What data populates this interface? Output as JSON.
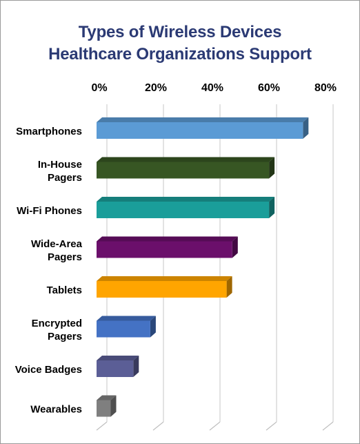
{
  "chart_data": {
    "type": "bar",
    "orientation": "horizontal",
    "title_lines": [
      "Types of Wireless Devices",
      "Healthcare Organizations Support"
    ],
    "categories": [
      [
        "Smartphones"
      ],
      [
        "In-House",
        "Pagers"
      ],
      [
        "Wi-Fi Phones"
      ],
      [
        "Wide-Area",
        "Pagers"
      ],
      [
        "Tablets"
      ],
      [
        "Encrypted",
        "Pagers"
      ],
      [
        "Voice Badges"
      ],
      [
        "Wearables"
      ]
    ],
    "values": [
      73,
      61,
      61,
      48,
      46,
      19,
      13,
      5
    ],
    "colors": [
      "#5b9bd5",
      "#375623",
      "#1a9e9a",
      "#6b0f6b",
      "#ffa500",
      "#4472c4",
      "#5b5e96",
      "#7f7f7f"
    ],
    "xlim": [
      0,
      80
    ],
    "xticks": [
      0,
      20,
      40,
      60,
      80
    ],
    "tick_labels": [
      "0%",
      "20%",
      "40%",
      "60%",
      "80%"
    ],
    "tick_position": "top",
    "grid": true,
    "legend": "none"
  }
}
